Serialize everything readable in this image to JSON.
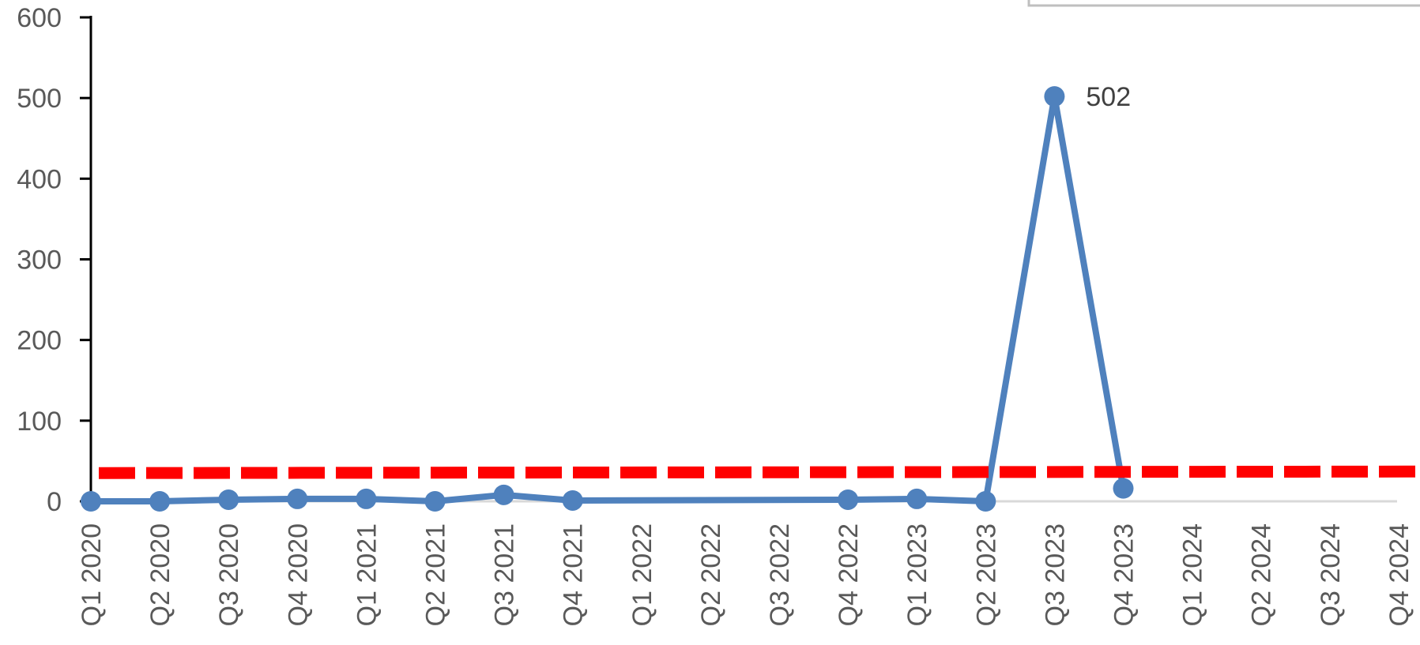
{
  "chart_data": {
    "type": "line",
    "title": "",
    "xlabel": "",
    "ylabel": "",
    "ylim": [
      0,
      600
    ],
    "yticks": [
      0,
      100,
      200,
      300,
      400,
      500,
      600
    ],
    "categories": [
      "Q1 2020",
      "Q2 2020",
      "Q3 2020",
      "Q4 2020",
      "Q1 2021",
      "Q2 2021",
      "Q3 2021",
      "Q4 2021",
      "Q1 2022",
      "Q2 2022",
      "Q3 2022",
      "Q4 2022",
      "Q1 2023",
      "Q2 2023",
      "Q3 2023",
      "Q4 2023",
      "Q1 2024",
      "Q2 2024",
      "Q3 2024",
      "Q4 2024"
    ],
    "series": [
      {
        "values": [
          0,
          0,
          2,
          3,
          3,
          0,
          8,
          1,
          null,
          null,
          null,
          2,
          3,
          0,
          502,
          16,
          null,
          null,
          null,
          null
        ],
        "color": "#4f81bd",
        "style": "solid line with circle markers",
        "data_labels": [
          {
            "index": 14,
            "text": "502"
          }
        ]
      },
      {
        "values": [
          35,
          35.1,
          35.2,
          35.3,
          35.4,
          35.5,
          35.6,
          35.7,
          35.8,
          35.9,
          36,
          36.1,
          36.2,
          36.3,
          36.4,
          36.5,
          36.6,
          36.7,
          36.8,
          36.9
        ],
        "color": "#ff0000",
        "style": "dashed line, no markers"
      }
    ],
    "grid": false,
    "legend": "none"
  }
}
